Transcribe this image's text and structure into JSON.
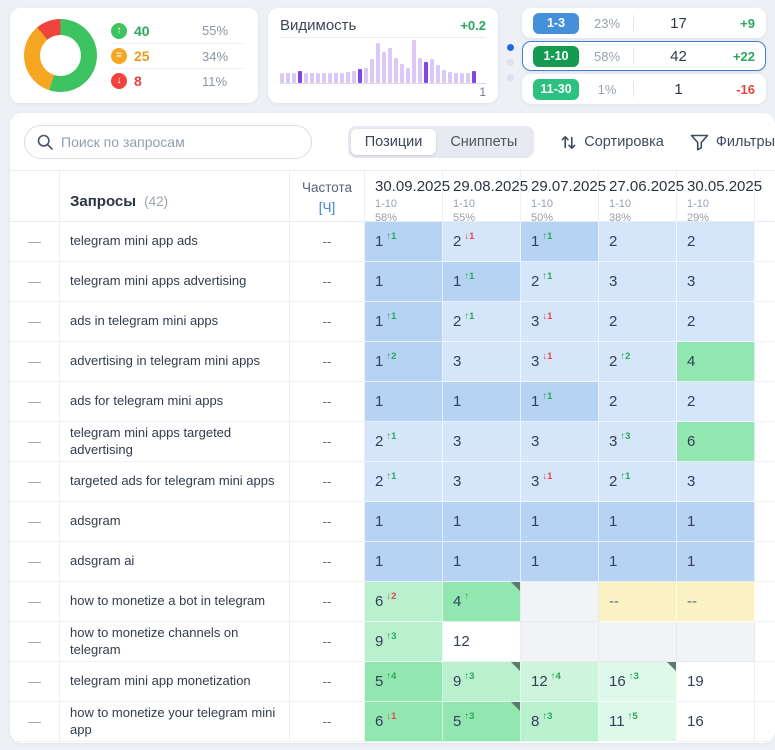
{
  "palette": {
    "blue-dark": "#b7d3f4",
    "blue-light": "#d5e5fa",
    "green-1": "#92e7b0",
    "green-2": "#b9f1ce",
    "green-3": "#ccf5db",
    "green-4": "#def9e9",
    "yellow": "#fbf2c4",
    "gray-empty": "#f1f3f6",
    "delta-up": "#2aa65c",
    "delta-down": "#e2474e",
    "bar-light": "#dcc8f7",
    "bar-dark": "#8445e0"
  },
  "summary": {
    "donut": {
      "segments": [
        {
          "name": "up",
          "value": 55,
          "color": "#3dc35f"
        },
        {
          "name": "same",
          "value": 34,
          "color": "#f5a623"
        },
        {
          "name": "down",
          "value": 11,
          "color": "#f0433d"
        }
      ],
      "legend": [
        {
          "icon": "arrow-up",
          "glyph": "↑",
          "count": "40",
          "count_color": "#2aa75d",
          "pct": "55%"
        },
        {
          "icon": "equals",
          "glyph": "=",
          "count": "25",
          "count_color": "#ef9a1d",
          "pct": "34%"
        },
        {
          "icon": "arrow-down",
          "glyph": "↓",
          "count": "8",
          "count_color": "#e2453f",
          "pct": "11%"
        }
      ]
    },
    "visibility": {
      "title": "Видимость",
      "delta": "+0.2",
      "axis_label": "1",
      "bars": [
        {
          "h": 24,
          "dark": 0
        },
        {
          "h": 24,
          "dark": 0
        },
        {
          "h": 24,
          "dark": 0
        },
        {
          "h": 28,
          "dark": 1
        },
        {
          "h": 24,
          "dark": 0
        },
        {
          "h": 24,
          "dark": 0
        },
        {
          "h": 24,
          "dark": 0
        },
        {
          "h": 24,
          "dark": 0
        },
        {
          "h": 24,
          "dark": 0
        },
        {
          "h": 24,
          "dark": 0
        },
        {
          "h": 24,
          "dark": 0
        },
        {
          "h": 26,
          "dark": 0
        },
        {
          "h": 28,
          "dark": 0
        },
        {
          "h": 32,
          "dark": 1
        },
        {
          "h": 36,
          "dark": 0
        },
        {
          "h": 55,
          "dark": 0
        },
        {
          "h": 92,
          "dark": 0
        },
        {
          "h": 72,
          "dark": 0
        },
        {
          "h": 82,
          "dark": 0
        },
        {
          "h": 58,
          "dark": 0
        },
        {
          "h": 44,
          "dark": 0
        },
        {
          "h": 34,
          "dark": 0
        },
        {
          "h": 100,
          "dark": 0
        },
        {
          "h": 58,
          "dark": 0
        },
        {
          "h": 50,
          "dark": 1
        },
        {
          "h": 56,
          "dark": 0
        },
        {
          "h": 42,
          "dark": 0
        },
        {
          "h": 30,
          "dark": 0
        },
        {
          "h": 26,
          "dark": 0
        },
        {
          "h": 24,
          "dark": 0
        },
        {
          "h": 24,
          "dark": 0
        },
        {
          "h": 24,
          "dark": 0
        },
        {
          "h": 28,
          "dark": 1
        }
      ]
    },
    "buckets": [
      {
        "range": "1-3",
        "pct": "23%",
        "count": "17",
        "delta": "+9",
        "delta_color": "#2aa75d",
        "badge_color": "#4590d9",
        "selected": false
      },
      {
        "range": "1-10",
        "pct": "58%",
        "count": "42",
        "delta": "+22",
        "delta_color": "#2aa75d",
        "badge_color": "#129b51",
        "selected": true
      },
      {
        "range": "11-30",
        "pct": "1%",
        "count": "1",
        "delta": "-16",
        "delta_color": "#e2453f",
        "badge_color": "#2bc17e",
        "selected": false
      }
    ]
  },
  "toolbar": {
    "search_placeholder": "Поиск по запросам",
    "tabs": [
      {
        "label": "Позиции",
        "active": true
      },
      {
        "label": "Сниппеты",
        "active": false
      }
    ],
    "sort_label": "Сортировка",
    "filter_label": "Фильтры"
  },
  "table": {
    "header": {
      "queries_label": "Запросы",
      "queries_count": "(42)",
      "freq_label": "Частота",
      "freq_unit": "[Ч]",
      "dates": [
        {
          "date": "30.09.2025",
          "range": "1-10",
          "pct": "58%"
        },
        {
          "date": "29.08.2025",
          "range": "1-10",
          "pct": "55%"
        },
        {
          "date": "29.07.2025",
          "range": "1-10",
          "pct": "50%"
        },
        {
          "date": "27.06.2025",
          "range": "1-10",
          "pct": "38%"
        },
        {
          "date": "30.05.2025",
          "range": "1-10",
          "pct": "29%"
        }
      ]
    },
    "rows": [
      {
        "query": "telegram mini app ads",
        "freq": "--",
        "cells": [
          {
            "v": "1",
            "d": "1",
            "dir": "up",
            "bg": "bd"
          },
          {
            "v": "2",
            "d": "1",
            "dir": "down",
            "bg": "bl"
          },
          {
            "v": "1",
            "d": "1",
            "dir": "up",
            "bg": "bd"
          },
          {
            "v": "2",
            "bg": "bl"
          },
          {
            "v": "2",
            "bg": "bl"
          }
        ]
      },
      {
        "query": "telegram mini apps advertising",
        "freq": "--",
        "cells": [
          {
            "v": "1",
            "bg": "bd"
          },
          {
            "v": "1",
            "d": "1",
            "dir": "up",
            "bg": "bd"
          },
          {
            "v": "2",
            "d": "1",
            "dir": "up",
            "bg": "bl"
          },
          {
            "v": "3",
            "bg": "bl"
          },
          {
            "v": "3",
            "bg": "bl"
          }
        ]
      },
      {
        "query": "ads in telegram mini apps",
        "freq": "--",
        "cells": [
          {
            "v": "1",
            "d": "1",
            "dir": "up",
            "bg": "bd"
          },
          {
            "v": "2",
            "d": "1",
            "dir": "up",
            "bg": "bl"
          },
          {
            "v": "3",
            "d": "1",
            "dir": "down",
            "bg": "bl"
          },
          {
            "v": "2",
            "bg": "bl"
          },
          {
            "v": "2",
            "bg": "bl"
          }
        ]
      },
      {
        "query": "advertising in telegram mini apps",
        "freq": "--",
        "cells": [
          {
            "v": "1",
            "d": "2",
            "dir": "up",
            "bg": "bd"
          },
          {
            "v": "3",
            "bg": "bl"
          },
          {
            "v": "3",
            "d": "1",
            "dir": "down",
            "bg": "bl"
          },
          {
            "v": "2",
            "d": "2",
            "dir": "up",
            "bg": "bl"
          },
          {
            "v": "4",
            "bg": "g1"
          }
        ]
      },
      {
        "query": "ads for telegram mini apps",
        "freq": "--",
        "cells": [
          {
            "v": "1",
            "bg": "bd"
          },
          {
            "v": "1",
            "bg": "bd"
          },
          {
            "v": "1",
            "d": "1",
            "dir": "up",
            "bg": "bd"
          },
          {
            "v": "2",
            "bg": "bl"
          },
          {
            "v": "2",
            "bg": "bl"
          }
        ]
      },
      {
        "query": "telegram mini apps targeted advertising",
        "freq": "--",
        "cells": [
          {
            "v": "2",
            "d": "1",
            "dir": "up",
            "bg": "bl"
          },
          {
            "v": "3",
            "bg": "bl"
          },
          {
            "v": "3",
            "bg": "bl"
          },
          {
            "v": "3",
            "d": "3",
            "dir": "up",
            "bg": "bl"
          },
          {
            "v": "6",
            "bg": "g1"
          }
        ]
      },
      {
        "query": "targeted ads for telegram mini apps",
        "freq": "--",
        "cells": [
          {
            "v": "2",
            "d": "1",
            "dir": "up",
            "bg": "bl"
          },
          {
            "v": "3",
            "bg": "bl"
          },
          {
            "v": "3",
            "d": "1",
            "dir": "down",
            "bg": "bl"
          },
          {
            "v": "2",
            "d": "1",
            "dir": "up",
            "bg": "bl"
          },
          {
            "v": "3",
            "bg": "bl"
          }
        ]
      },
      {
        "query": "adsgram",
        "freq": "--",
        "cells": [
          {
            "v": "1",
            "bg": "bd"
          },
          {
            "v": "1",
            "bg": "bd"
          },
          {
            "v": "1",
            "bg": "bd"
          },
          {
            "v": "1",
            "bg": "bd"
          },
          {
            "v": "1",
            "bg": "bd"
          }
        ]
      },
      {
        "query": "adsgram ai",
        "freq": "--",
        "cells": [
          {
            "v": "1",
            "bg": "bd"
          },
          {
            "v": "1",
            "bg": "bd"
          },
          {
            "v": "1",
            "bg": "bd"
          },
          {
            "v": "1",
            "bg": "bd"
          },
          {
            "v": "1",
            "bg": "bd"
          }
        ]
      },
      {
        "query": "how to monetize a bot in telegram",
        "freq": "--",
        "cells": [
          {
            "v": "6",
            "d": "2",
            "dir": "down",
            "bg": "g2"
          },
          {
            "v": "4",
            "d": "",
            "dir": "up",
            "bg": "g1",
            "flag": true
          },
          {
            "v": "",
            "bg": "gy"
          },
          {
            "v": "--",
            "bg": "ye"
          },
          {
            "v": "--",
            "bg": "ye"
          }
        ]
      },
      {
        "query": "how to monetize channels on telegram",
        "freq": "--",
        "cells": [
          {
            "v": "9",
            "d": "3",
            "dir": "up",
            "bg": "g2"
          },
          {
            "v": "12",
            "bg": "wh"
          },
          {
            "v": "",
            "bg": "gy"
          },
          {
            "v": "",
            "bg": "gy"
          },
          {
            "v": "",
            "bg": "gy"
          }
        ]
      },
      {
        "query": "telegram mini app monetization",
        "freq": "--",
        "cells": [
          {
            "v": "5",
            "d": "4",
            "dir": "up",
            "bg": "g1"
          },
          {
            "v": "9",
            "d": "3",
            "dir": "up",
            "bg": "g2",
            "flag": true
          },
          {
            "v": "12",
            "d": "4",
            "dir": "up",
            "bg": "g3"
          },
          {
            "v": "16",
            "d": "3",
            "dir": "up",
            "bg": "g4",
            "flag": true
          },
          {
            "v": "19",
            "bg": "wh"
          }
        ]
      },
      {
        "query": "how to monetize your telegram mini app",
        "freq": "--",
        "cells": [
          {
            "v": "6",
            "d": "1",
            "dir": "down",
            "bg": "g1"
          },
          {
            "v": "5",
            "d": "3",
            "dir": "up",
            "bg": "g1",
            "flag": true
          },
          {
            "v": "8",
            "d": "3",
            "dir": "up",
            "bg": "g2"
          },
          {
            "v": "11",
            "d": "5",
            "dir": "up",
            "bg": "g4"
          },
          {
            "v": "16",
            "bg": "wh"
          }
        ]
      }
    ]
  }
}
